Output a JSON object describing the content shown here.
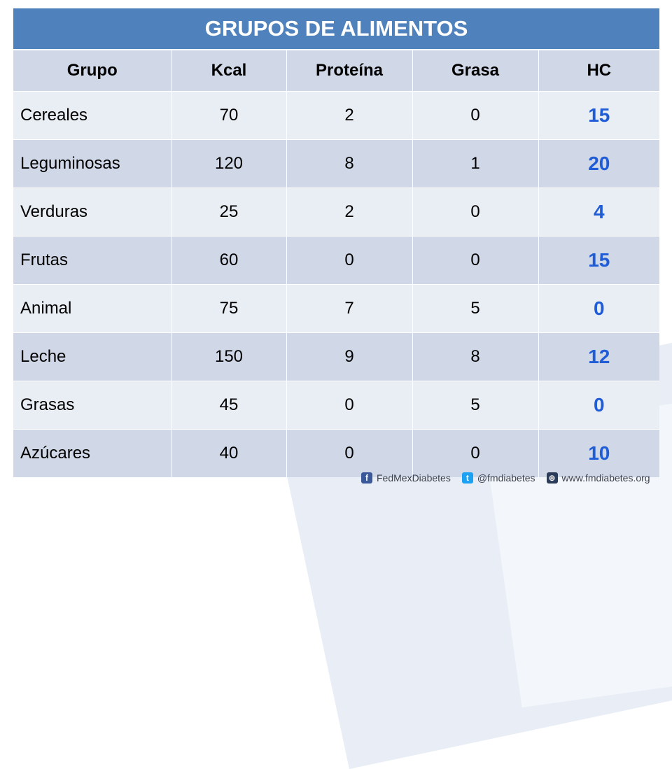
{
  "table": {
    "title": "GRUPOS DE ALIMENTOS",
    "headers": [
      "Grupo",
      "Kcal",
      "Proteína",
      "Grasa",
      "HC"
    ],
    "rows": [
      [
        "Cereales",
        "70",
        "2",
        "0",
        "15"
      ],
      [
        "Leguminosas",
        "120",
        "8",
        "1",
        "20"
      ],
      [
        "Verduras",
        "25",
        "2",
        "0",
        "4"
      ],
      [
        "Frutas",
        "60",
        "0",
        "0",
        "15"
      ],
      [
        "Animal",
        "75",
        "7",
        "5",
        "0"
      ],
      [
        "Leche",
        "150",
        "9",
        "8",
        "12"
      ],
      [
        "Grasas",
        "45",
        "0",
        "5",
        "0"
      ],
      [
        "Azúcares",
        "40",
        "0",
        "0",
        "10"
      ]
    ]
  },
  "footer": {
    "facebook": "FedMexDiabetes",
    "twitter": "@fmdiabetes",
    "website": "www.fmdiabetes.org",
    "icons": [
      "facebook-icon",
      "twitter-icon",
      "globe-icon"
    ]
  }
}
